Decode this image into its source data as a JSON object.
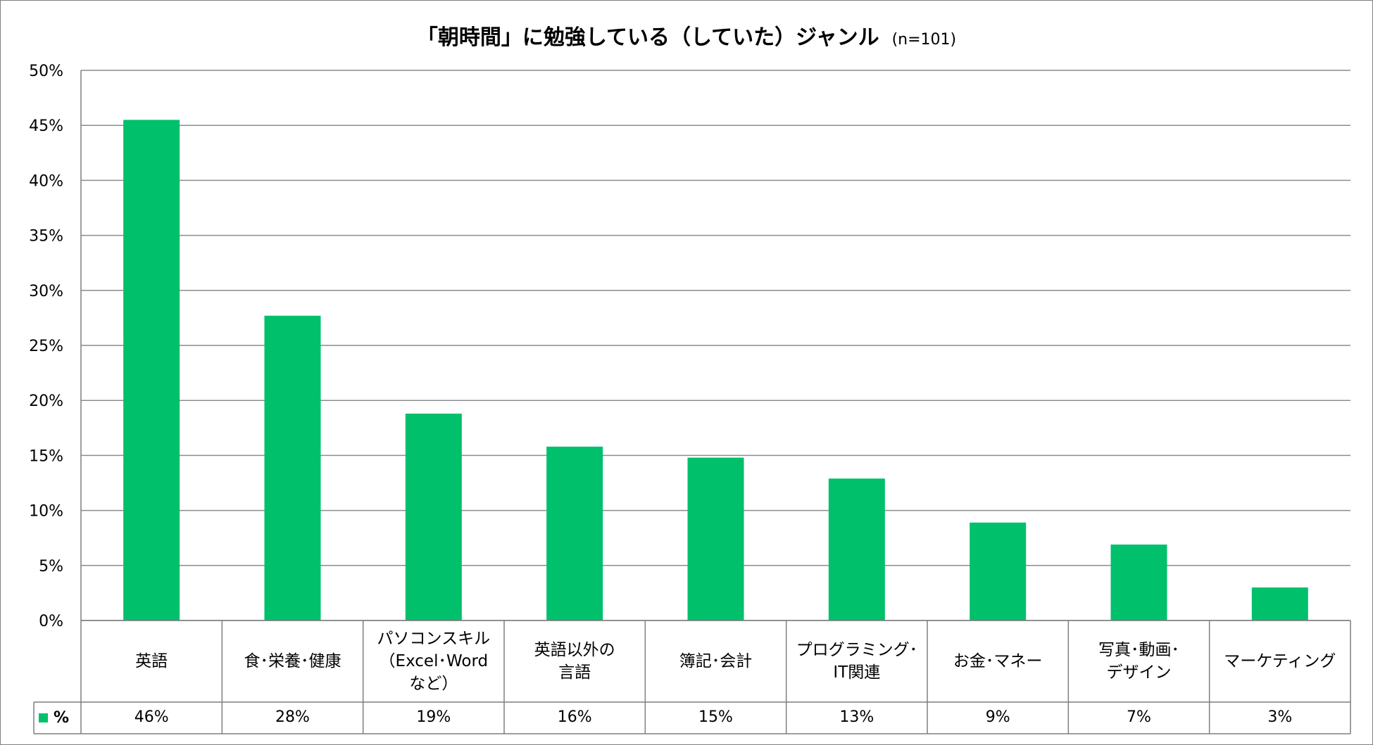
{
  "chart_data": {
    "type": "bar",
    "title": "「朝時間」に勉強している（していた）ジャンル",
    "subtitle": "(n=101)",
    "categories": [
      "英語",
      "食･栄養･健康",
      "パソコンスキル\n（Excel･Word\nなど）",
      "英語以外の\n言語",
      "簿記･会計",
      "プログラミング･\nIT関連",
      "お金･マネー",
      "写真･動画･\nデザイン",
      "マーケティング"
    ],
    "series": [
      {
        "name": "%",
        "values": [
          45.5,
          27.7,
          18.8,
          15.8,
          14.8,
          12.9,
          8.9,
          6.9,
          3.0
        ],
        "labels": [
          "46%",
          "28%",
          "19%",
          "16%",
          "15%",
          "13%",
          "9%",
          "7%",
          "3%"
        ]
      }
    ],
    "y_ticks": [
      "0%",
      "5%",
      "10%",
      "15%",
      "20%",
      "25%",
      "30%",
      "35%",
      "40%",
      "45%",
      "50%"
    ],
    "ylim": [
      0,
      50
    ],
    "grid": true,
    "legend": "data-table-left",
    "colors": {
      "bar": "#00c06c",
      "grid": "#8c8c8c",
      "axis": "#7f7f7f"
    }
  }
}
